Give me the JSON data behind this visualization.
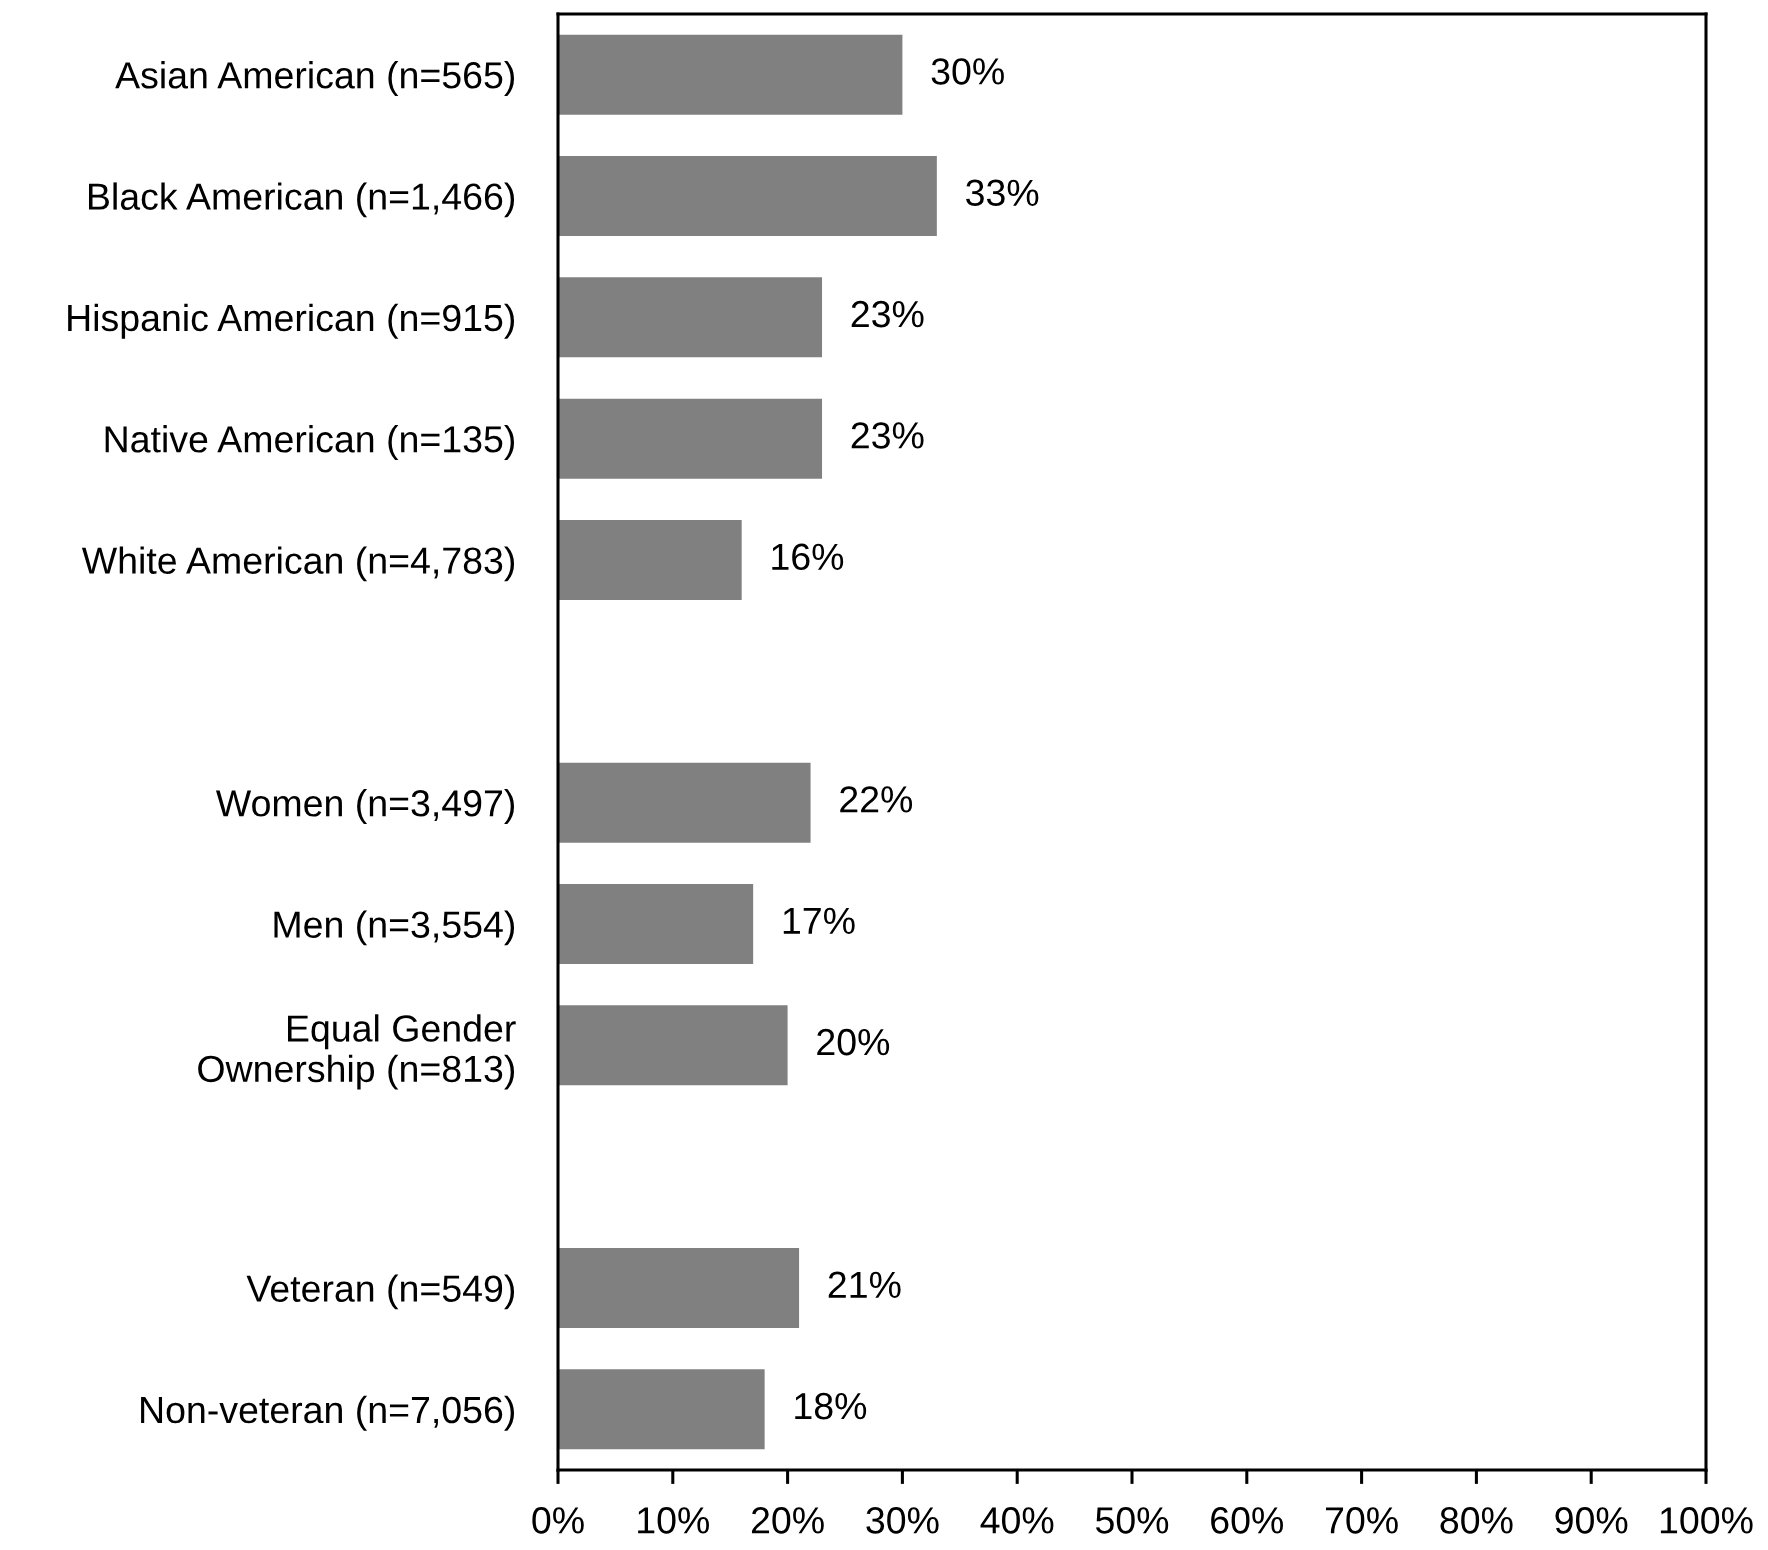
{
  "chart_data": {
    "type": "bar",
    "orientation": "horizontal",
    "categories": [
      "Asian American (n=565)",
      "Black American (n=1,466)",
      "Hispanic American (n=915)",
      "Native American (n=135)",
      "White American (n=4,783)",
      null,
      "Women (n=3,497)",
      "Men (n=3,554)",
      "Equal Gender\nOwnership (n=813)",
      null,
      "Veteran (n=549)",
      "Non-veteran (n=7,056)"
    ],
    "values": [
      30,
      33,
      23,
      23,
      16,
      null,
      22,
      17,
      20,
      null,
      21,
      18
    ],
    "value_labels": [
      "30%",
      "33%",
      "23%",
      "23%",
      "16%",
      null,
      "22%",
      "17%",
      "20%",
      null,
      "21%",
      "18%"
    ],
    "color": "#808080",
    "xlim": [
      0,
      100
    ],
    "xticks": [
      {
        "value": 0,
        "label": "0%"
      },
      {
        "value": 10,
        "label": "10%"
      },
      {
        "value": 20,
        "label": "20%"
      },
      {
        "value": 30,
        "label": "30%"
      },
      {
        "value": 40,
        "label": "40%"
      },
      {
        "value": 50,
        "label": "50%"
      },
      {
        "value": 60,
        "label": "60%"
      },
      {
        "value": 70,
        "label": "70%"
      },
      {
        "value": 80,
        "label": "80%"
      },
      {
        "value": 90,
        "label": "90%"
      },
      {
        "value": 100,
        "label": "100%"
      }
    ],
    "grid": false,
    "legend": false
  }
}
